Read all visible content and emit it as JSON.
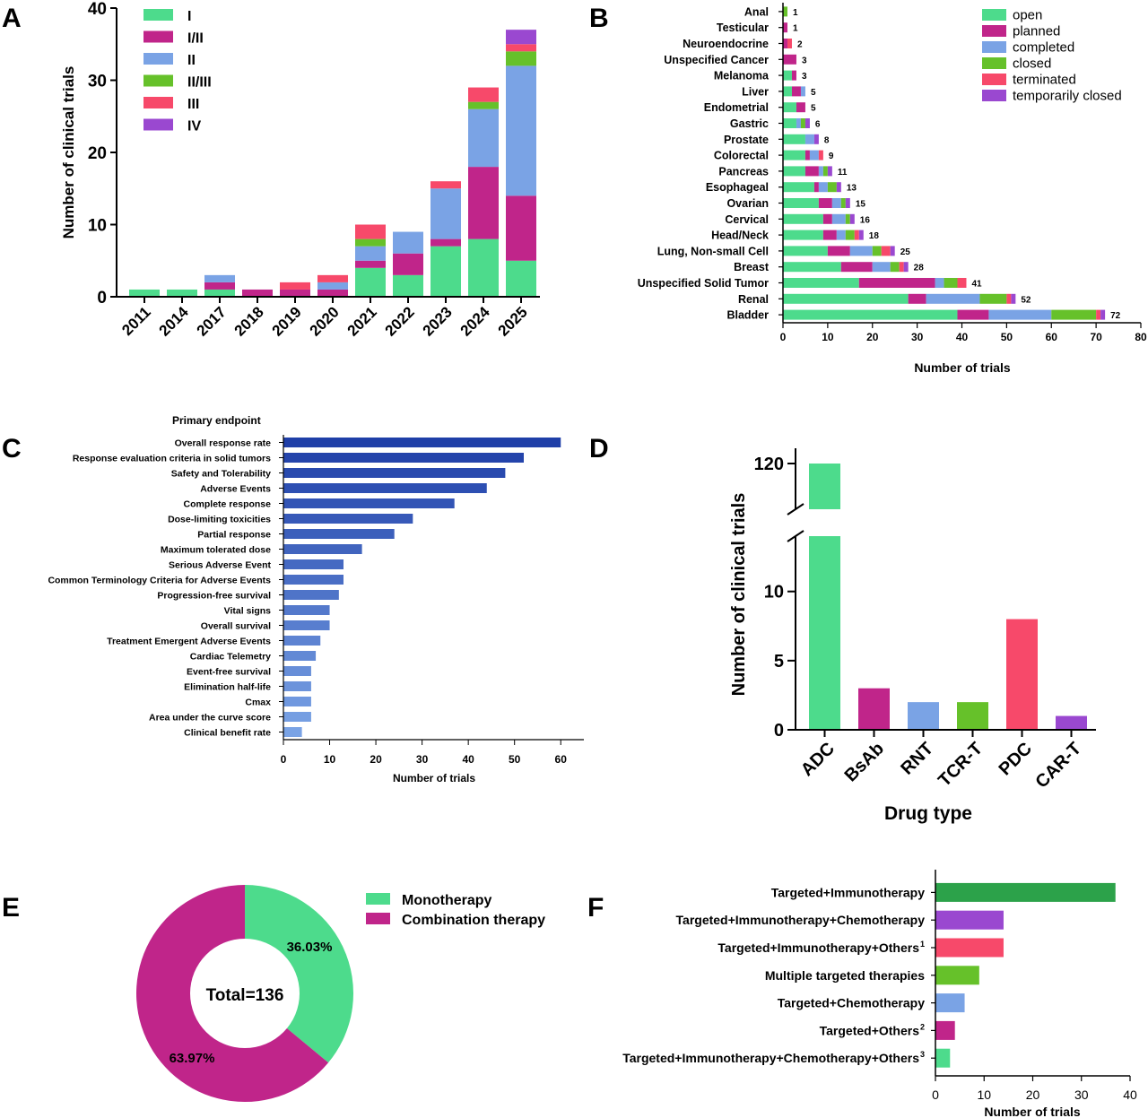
{
  "colors": {
    "open": "#4ddb8c",
    "planned": "#c0258a",
    "completed": "#7aa3e5",
    "closed": "#66c12a",
    "terminated": "#f7496a",
    "temp_closed": "#9a48d0",
    "endpoint_dark": "#1f3fa8",
    "endpoint_light": "#7aa3e5",
    "combo_dark_green": "#2ca24a"
  },
  "panel_labels": [
    "A",
    "B",
    "C",
    "D",
    "E",
    "F"
  ],
  "chart_data": [
    {
      "id": "A",
      "type": "bar",
      "stacked": true,
      "categories": [
        "2011",
        "2014",
        "2017",
        "2018",
        "2019",
        "2020",
        "2021",
        "2022",
        "2023",
        "2024",
        "2025"
      ],
      "series": [
        {
          "name": "I",
          "values": [
            1,
            1,
            1,
            0,
            0,
            0,
            4,
            3,
            7,
            8,
            5
          ]
        },
        {
          "name": "I/II",
          "values": [
            0,
            0,
            1,
            1,
            1,
            1,
            1,
            3,
            1,
            10,
            9
          ]
        },
        {
          "name": "II",
          "values": [
            0,
            0,
            1,
            0,
            0,
            1,
            2,
            3,
            7,
            8,
            18
          ]
        },
        {
          "name": "II/III",
          "values": [
            0,
            0,
            0,
            0,
            0,
            0,
            1,
            0,
            0,
            1,
            2
          ]
        },
        {
          "name": "III",
          "values": [
            0,
            0,
            0,
            0,
            1,
            1,
            2,
            0,
            1,
            2,
            1
          ]
        },
        {
          "name": "IV",
          "values": [
            0,
            0,
            0,
            0,
            0,
            0,
            0,
            0,
            0,
            0,
            2
          ]
        }
      ],
      "xlabel": "",
      "ylabel": "Number of clinical trials",
      "ylim": [
        0,
        40
      ],
      "yticks": [
        "0",
        "10",
        "20",
        "30",
        "40"
      ],
      "legend": "top-left"
    },
    {
      "id": "B",
      "type": "bar",
      "orientation": "horizontal",
      "stacked": true,
      "categories": [
        "Anal",
        "Testicular",
        "Neuroendocrine",
        "Unspecified Cancer",
        "Melanoma",
        "Liver",
        "Endometrial",
        "Gastric",
        "Prostate",
        "Colorectal",
        "Pancreas",
        "Esophageal",
        "Ovarian",
        "Cervical",
        "Head/Neck",
        "Lung, Non-small Cell",
        "Breast",
        "Unspecified Solid Tumor",
        "Renal",
        "Bladder"
      ],
      "totals": [
        "1",
        "1",
        "2",
        "3",
        "3",
        "5",
        "5",
        "6",
        "8",
        "9",
        "11",
        "13",
        "15",
        "16",
        "18",
        "25",
        "28",
        "41",
        "52",
        "72"
      ],
      "series": [
        {
          "name": "open",
          "values": [
            0,
            0,
            0,
            0,
            2,
            2,
            3,
            3,
            5,
            5,
            5,
            7,
            8,
            9,
            9,
            10,
            13,
            17,
            28,
            39
          ]
        },
        {
          "name": "planned",
          "values": [
            0,
            1,
            1,
            3,
            1,
            2,
            2,
            0,
            0,
            1,
            3,
            1,
            3,
            2,
            3,
            5,
            7,
            17,
            4,
            7
          ]
        },
        {
          "name": "completed",
          "values": [
            0,
            0,
            0,
            0,
            0,
            1,
            0,
            1,
            2,
            2,
            1,
            2,
            2,
            3,
            2,
            5,
            4,
            2,
            12,
            14
          ]
        },
        {
          "name": "closed",
          "values": [
            1,
            0,
            0,
            0,
            0,
            0,
            0,
            1,
            0,
            0,
            1,
            2,
            1,
            1,
            2,
            2,
            2,
            3,
            6,
            10
          ]
        },
        {
          "name": "terminated",
          "values": [
            0,
            0,
            1,
            0,
            0,
            0,
            0,
            0,
            0,
            1,
            0,
            0,
            0,
            0,
            1,
            2,
            1,
            2,
            1,
            1
          ]
        },
        {
          "name": "temporarily closed",
          "values": [
            0,
            0,
            0,
            0,
            0,
            0,
            0,
            1,
            1,
            0,
            1,
            1,
            1,
            1,
            1,
            1,
            1,
            0,
            1,
            1
          ]
        }
      ],
      "xlabel": "Number of trials",
      "xlim": [
        0,
        80
      ],
      "xticks": [
        "0",
        "10",
        "20",
        "30",
        "40",
        "50",
        "60",
        "70",
        "80"
      ],
      "legend": "top-right"
    },
    {
      "id": "C",
      "type": "bar",
      "orientation": "horizontal",
      "title": "Primary endpoint",
      "categories": [
        "Overall response rate",
        "Response evaluation criteria in solid tumors",
        "Safety and Tolerability",
        "Adverse Events",
        "Complete response",
        "Dose-limiting toxicities",
        "Partial response",
        "Maximum tolerated dose",
        "Serious Adverse Event",
        "Common Terminology Criteria for Adverse Events",
        "Progression-free survival",
        "Vital signs",
        "Overall survival",
        "Treatment Emergent Adverse Events",
        "Cardiac Telemetry",
        "Event-free survival",
        "Elimination half-life",
        "Cmax",
        "Area under the curve score",
        "Clinical benefit rate"
      ],
      "values": [
        60,
        52,
        48,
        44,
        37,
        28,
        24,
        17,
        13,
        13,
        12,
        10,
        10,
        8,
        7,
        6,
        6,
        6,
        6,
        4
      ],
      "xlabel": "Number of trials",
      "xlim": [
        0,
        65
      ],
      "xticks": [
        "0",
        "10",
        "20",
        "30",
        "40",
        "50",
        "60"
      ]
    },
    {
      "id": "D",
      "type": "bar",
      "categories": [
        "ADC",
        "BsAb",
        "RNT",
        "TCR-T",
        "PDC",
        "CAR-T"
      ],
      "values": [
        120,
        3,
        2,
        2,
        8,
        1
      ],
      "xlabel": "Drug type",
      "ylabel": "Number of clinical trials",
      "y_axis_break": true,
      "ylim_lower": [
        0,
        14
      ],
      "ylim_upper": [
        117,
        121
      ],
      "yticks": [
        "0",
        "5",
        "10",
        "120"
      ]
    },
    {
      "id": "E",
      "type": "pie",
      "donut": true,
      "center_label": "Total=136",
      "categories": [
        "Monotherapy",
        "Combination therapy"
      ],
      "values": [
        36.03,
        63.97
      ],
      "value_labels": [
        "36.03%",
        "63.97%"
      ],
      "legend": "right"
    },
    {
      "id": "F",
      "type": "bar",
      "orientation": "horizontal",
      "categories": [
        "Targeted+Immunotherapy",
        "Targeted+Immunotherapy+Chemotherapy",
        "Targeted+Immunotherapy+Others",
        "Multiple targeted therapies",
        "Targeted+Chemotherapy",
        "Targeted+Others",
        "Targeted+Immunotherapy+Chemotherapy+Others"
      ],
      "superscripts": [
        "",
        "",
        "1",
        "",
        "",
        "2",
        "3"
      ],
      "values": [
        37,
        14,
        14,
        9,
        6,
        4,
        3
      ],
      "xlabel": "Number of trials",
      "xlim": [
        0,
        40
      ],
      "xticks": [
        "0",
        "10",
        "20",
        "30",
        "40"
      ]
    }
  ]
}
